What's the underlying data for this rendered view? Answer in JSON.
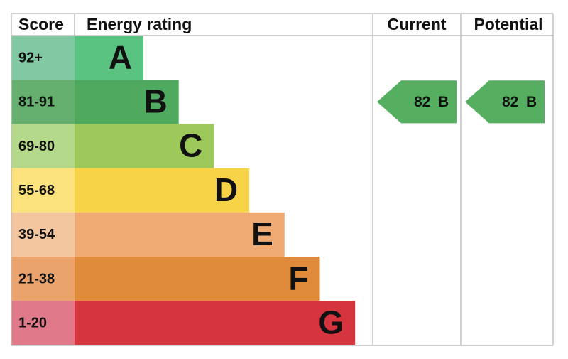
{
  "header": {
    "score": "Score",
    "energy_rating": "Energy rating",
    "current": "Current",
    "potential": "Potential"
  },
  "rows": [
    {
      "score": "92+",
      "rating": "A"
    },
    {
      "score": "81-91",
      "rating": "B"
    },
    {
      "score": "69-80",
      "rating": "C"
    },
    {
      "score": "55-68",
      "rating": "D"
    },
    {
      "score": "39-54",
      "rating": "E"
    },
    {
      "score": "21-38",
      "rating": "F"
    },
    {
      "score": "1-20",
      "rating": "G"
    }
  ],
  "current": {
    "score": "82",
    "rating": "B"
  },
  "potential": {
    "score": "82",
    "rating": "B"
  }
}
